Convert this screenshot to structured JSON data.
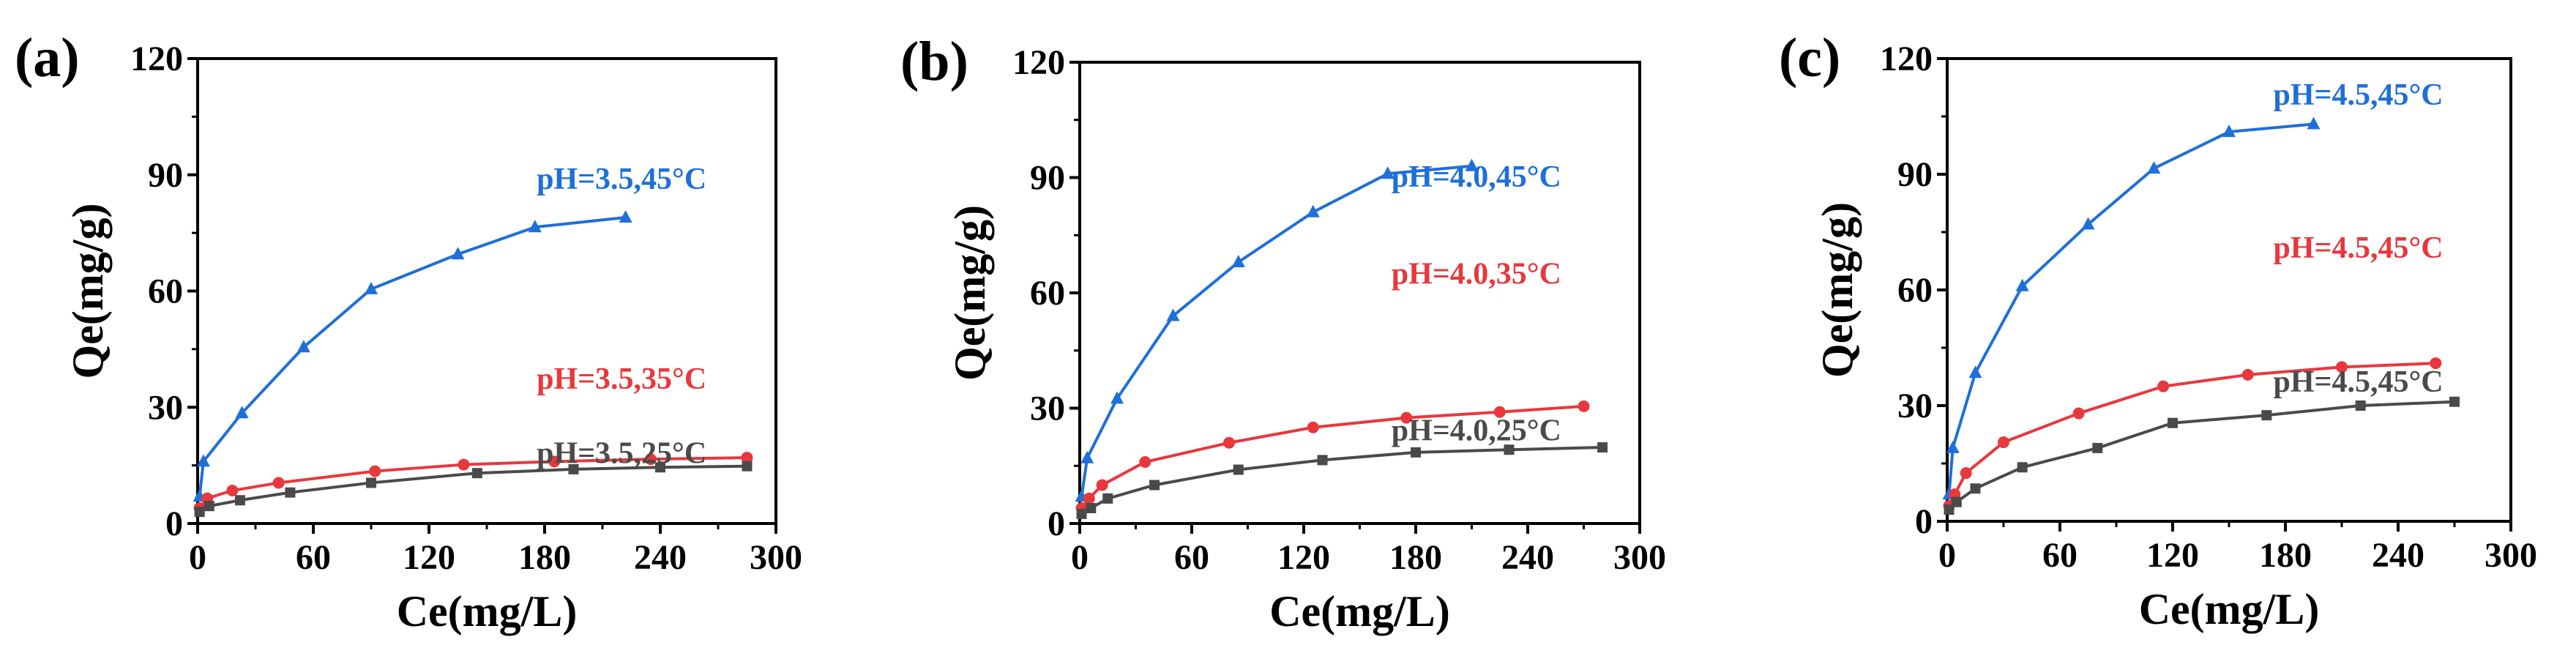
{
  "figure": {
    "panels": [
      {
        "label": "(a)"
      },
      {
        "label": "(b)"
      },
      {
        "label": "(c)"
      }
    ]
  },
  "colors": {
    "blue": "#1f6fd8",
    "red": "#e8383d",
    "gray": "#4a4a4a",
    "axis": "#000000"
  },
  "chart_data": [
    {
      "type": "line",
      "title": "(a)",
      "xlabel": "Ce(mg/L)",
      "ylabel": "Qe(mg/g)",
      "xlim": [
        0,
        300
      ],
      "ylim": [
        0,
        120
      ],
      "xticks": [
        0,
        60,
        120,
        180,
        240,
        300
      ],
      "yticks": [
        0,
        30,
        60,
        90,
        120
      ],
      "series": [
        {
          "name": "pH=3.5,45°C",
          "color": "blue",
          "marker": "triangle",
          "x": [
            1,
            3,
            23,
            55,
            90,
            135,
            175,
            222
          ],
          "y": [
            7,
            16,
            28.5,
            45.5,
            60.5,
            69.5,
            76.5,
            79
          ]
        },
        {
          "name": "pH=3.5,35°C",
          "color": "red",
          "marker": "circle",
          "x": [
            1,
            5,
            18,
            42,
            92,
            138,
            185,
            235,
            285
          ],
          "y": [
            4,
            6.5,
            8.5,
            10.5,
            13.5,
            15.2,
            16,
            16.6,
            17
          ]
        },
        {
          "name": "pH=3.5,25°C",
          "color": "gray",
          "marker": "square",
          "x": [
            1,
            6,
            22,
            48,
            90,
            145,
            195,
            240,
            285
          ],
          "y": [
            3,
            4.5,
            6,
            8,
            10.5,
            13,
            14,
            14.5,
            14.8
          ]
        }
      ]
    },
    {
      "type": "line",
      "title": "(b)",
      "xlabel": "Ce(mg/L)",
      "ylabel": "Qe(mg/g)",
      "xlim": [
        0,
        300
      ],
      "ylim": [
        0,
        120
      ],
      "xticks": [
        0,
        60,
        120,
        180,
        240,
        300
      ],
      "yticks": [
        0,
        30,
        60,
        90,
        120
      ],
      "series": [
        {
          "name": "pH=4.0,45°C",
          "color": "blue",
          "marker": "triangle",
          "x": [
            1,
            4,
            20,
            50,
            85,
            125,
            165,
            210
          ],
          "y": [
            7,
            17,
            32.5,
            54,
            68,
            81,
            91,
            93
          ]
        },
        {
          "name": "pH=4.0,35°C",
          "color": "red",
          "marker": "circle",
          "x": [
            1,
            5,
            12,
            35,
            80,
            125,
            175,
            225,
            270
          ],
          "y": [
            4,
            6.5,
            10,
            16,
            21,
            25,
            27.5,
            29,
            30.5
          ]
        },
        {
          "name": "pH=4.0,25°C",
          "color": "gray",
          "marker": "square",
          "x": [
            1,
            6,
            15,
            40,
            85,
            130,
            180,
            230,
            280
          ],
          "y": [
            2.5,
            4,
            6.5,
            10,
            14,
            16.5,
            18.5,
            19.2,
            19.8
          ]
        }
      ]
    },
    {
      "type": "line",
      "title": "(c)",
      "xlabel": "Ce(mg/L)",
      "ylabel": "Qe(mg/g)",
      "xlim": [
        0,
        300
      ],
      "ylim": [
        0,
        120
      ],
      "xticks": [
        0,
        60,
        120,
        180,
        240,
        300
      ],
      "yticks": [
        0,
        30,
        60,
        90,
        120
      ],
      "series": [
        {
          "name": "pH=4.5,45°C",
          "color": "blue",
          "marker": "triangle",
          "x": [
            1,
            3,
            15,
            40,
            75,
            110,
            150,
            195
          ],
          "y": [
            7,
            19,
            38.5,
            61,
            77,
            91.5,
            101,
            103
          ]
        },
        {
          "name": "pH=4.5,45°C",
          "color": "red",
          "marker": "circle",
          "x": [
            1,
            4,
            10,
            30,
            70,
            115,
            160,
            210,
            260
          ],
          "y": [
            4,
            7,
            12.5,
            20.5,
            28,
            35,
            38,
            40,
            41
          ]
        },
        {
          "name": "pH=4.5,45°C",
          "color": "gray",
          "marker": "square",
          "x": [
            1,
            5,
            15,
            40,
            80,
            120,
            170,
            220,
            270
          ],
          "y": [
            3,
            5,
            8.5,
            14,
            19,
            25.5,
            27.5,
            30,
            31
          ]
        }
      ]
    }
  ]
}
